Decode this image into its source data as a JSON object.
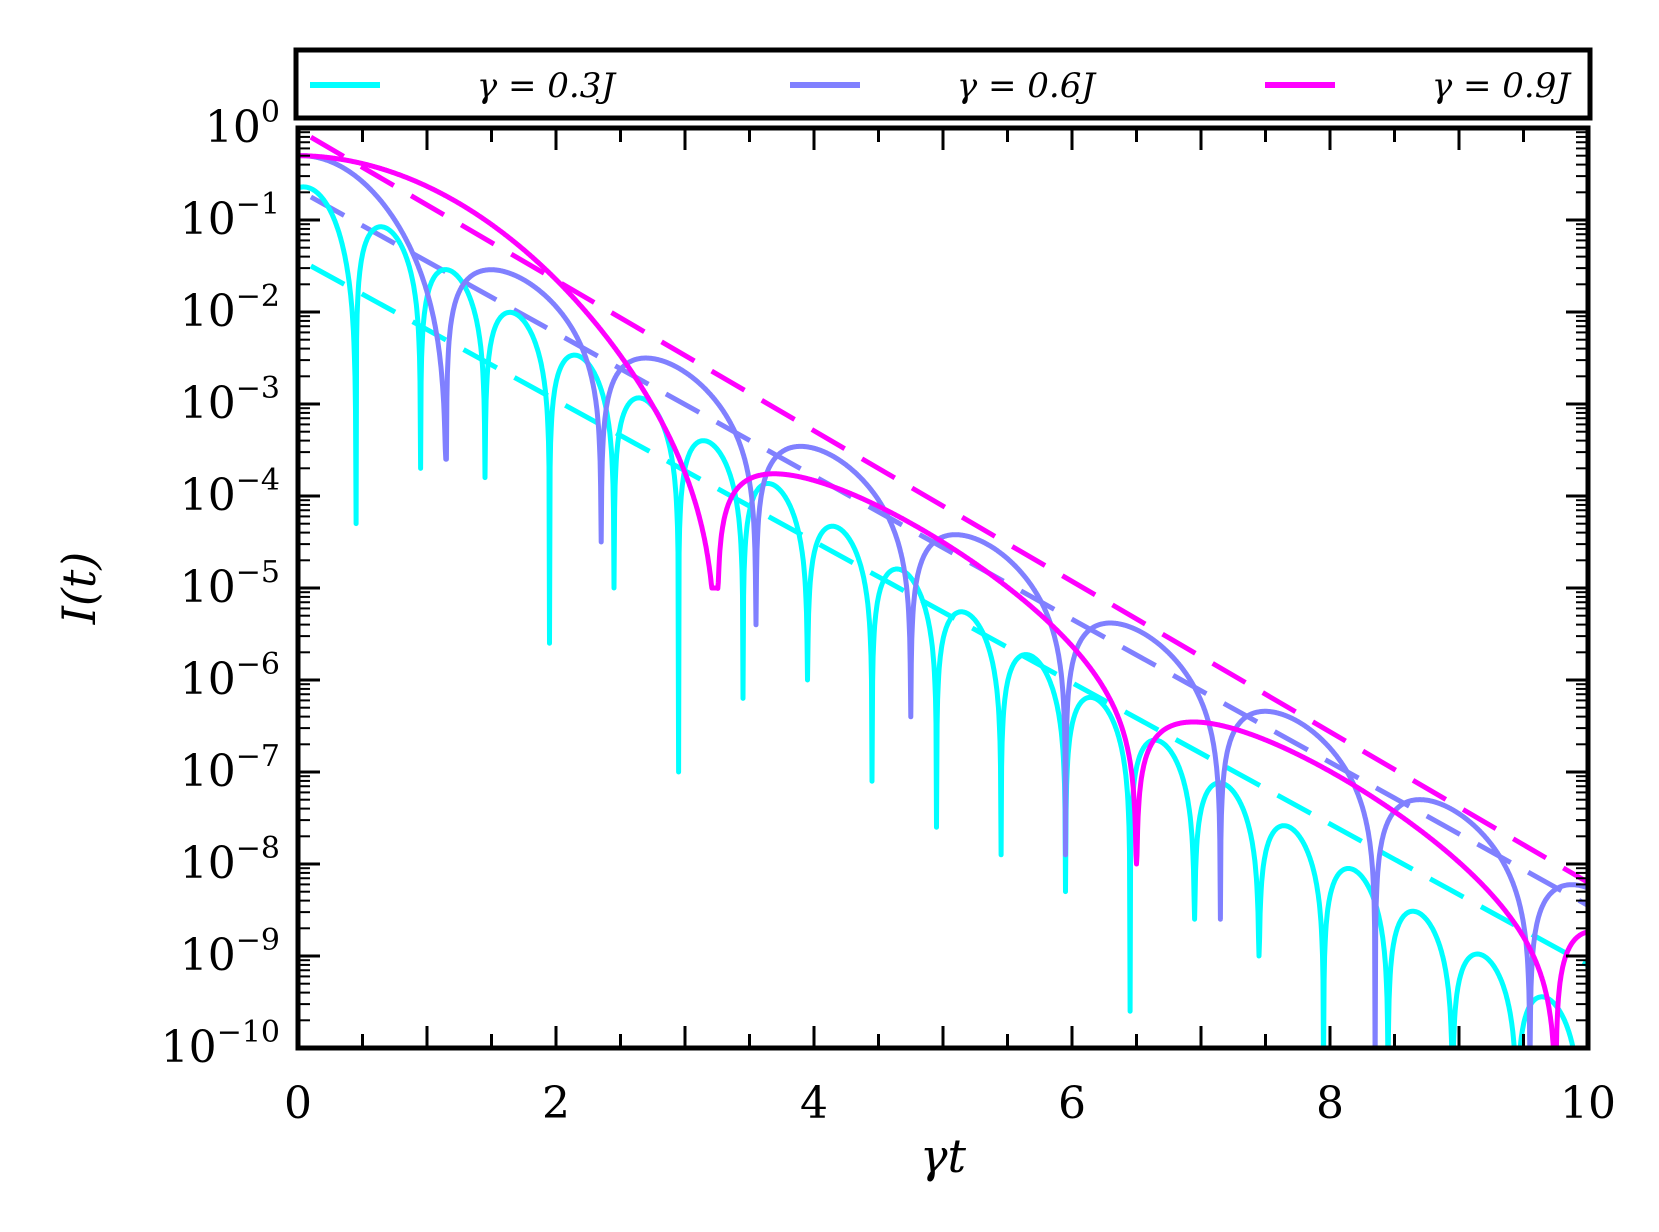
{
  "chart_data": {
    "type": "line",
    "title": "",
    "xlabel": "γt",
    "ylabel": "I(t)",
    "xlim": [
      0,
      10
    ],
    "ylim_exponent": [
      -10,
      0
    ],
    "yscale": "log",
    "x_ticks": [
      "0",
      "2",
      "4",
      "6",
      "8",
      "10"
    ],
    "y_tick_base": "10",
    "y_tick_exponents": [
      "0",
      "−1",
      "−2",
      "−3",
      "−4",
      "−5",
      "−6",
      "−7",
      "−8",
      "−9",
      "−10"
    ],
    "legend_placement": "top, above plot, single row",
    "grid": false,
    "series": [
      {
        "name": "γ = 0.3J",
        "color": "#00ffff",
        "kind": "oscillating",
        "start_log10": -0.65,
        "envelope_start_log10": -0.45,
        "decay_per_unit": 0.93,
        "dips_x": [
          0.45,
          0.95,
          1.45,
          1.95,
          2.45,
          2.95,
          3.45,
          3.95,
          4.45,
          4.95,
          5.45,
          5.95,
          6.45,
          6.95,
          7.45,
          7.95,
          8.45,
          8.95,
          9.45,
          9.95
        ],
        "dips_log10": [
          -4.3,
          -3.7,
          -3.8,
          -5.6,
          -5.0,
          -7.0,
          -6.2,
          -6.0,
          -7.1,
          -7.6,
          -7.9,
          -8.3,
          -9.6,
          -8.6,
          -9.0,
          -10.2,
          -10.2,
          -10.2,
          -10.2,
          -10.2
        ],
        "dashed_start_log10": -1.5,
        "dashed_end_log10": -9.1
      },
      {
        "name": "γ = 0.6J",
        "color": "#8080ff",
        "kind": "oscillating",
        "start_log10": -0.3,
        "envelope_start_log10": -0.25,
        "decay_per_unit": 0.8,
        "dips_x": [
          1.15,
          2.35,
          3.55,
          4.75,
          5.95,
          7.15,
          8.35,
          9.55
        ],
        "dips_log10": [
          -3.6,
          -4.5,
          -5.4,
          -6.4,
          -7.9,
          -8.6,
          -10.2,
          -10.2
        ],
        "dashed_start_log10": -0.75,
        "dashed_end_log10": -8.45
      },
      {
        "name": "γ = 0.9J",
        "color": "#ff00ff",
        "kind": "oscillating",
        "start_log10": -0.3,
        "envelope_start_log10": -0.35,
        "decay_per_unit": 0.83,
        "dips_x": [
          3.25,
          6.5,
          9.75
        ],
        "dips_log10": [
          -5.0,
          -8.0,
          -10.2
        ],
        "dashed_start_log10": -0.1,
        "dashed_end_log10": -8.2
      }
    ]
  }
}
